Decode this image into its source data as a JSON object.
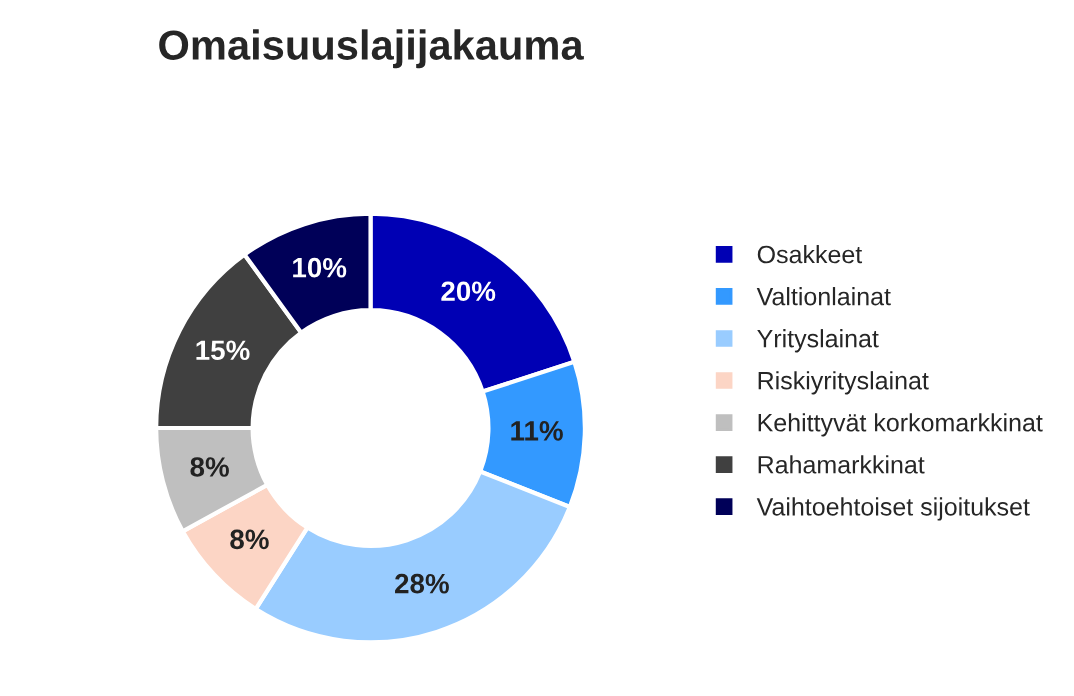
{
  "chart_data": {
    "type": "donut",
    "title": "Omaisuuslajijakauma",
    "categories": [
      "Osakkeet",
      "Valtionlainat",
      "Yrityslainat",
      "Riskiyrityslainat",
      "Kehittyvät korkomarkkinat",
      "Rahamarkkinat",
      "Vaihtoehtoiset sijoitukset"
    ],
    "values": [
      20,
      11,
      28,
      8,
      8,
      15,
      10
    ],
    "value_labels": [
      "20%",
      "11%",
      "28%",
      "8%",
      "8%",
      "15%",
      "10%"
    ],
    "colors": [
      "#0000b4",
      "#3399ff",
      "#99ccff",
      "#fcd5c5",
      "#bfbfbf",
      "#404040",
      "#000058"
    ],
    "legend": "right"
  }
}
